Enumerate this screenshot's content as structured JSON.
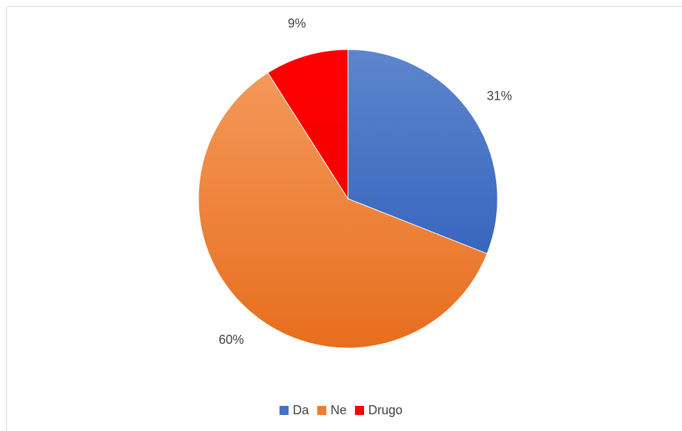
{
  "chart_data": {
    "type": "pie",
    "categories": [
      "Da",
      "Ne",
      "Drugo"
    ],
    "values": [
      31,
      60,
      9
    ],
    "value_labels": [
      "31%",
      "60%",
      "9%"
    ],
    "colors": [
      "#4472c4",
      "#ed7d31",
      "#ff0000"
    ],
    "start_angle": "12 o'clock",
    "direction": "clockwise",
    "legend_position": "bottom"
  }
}
